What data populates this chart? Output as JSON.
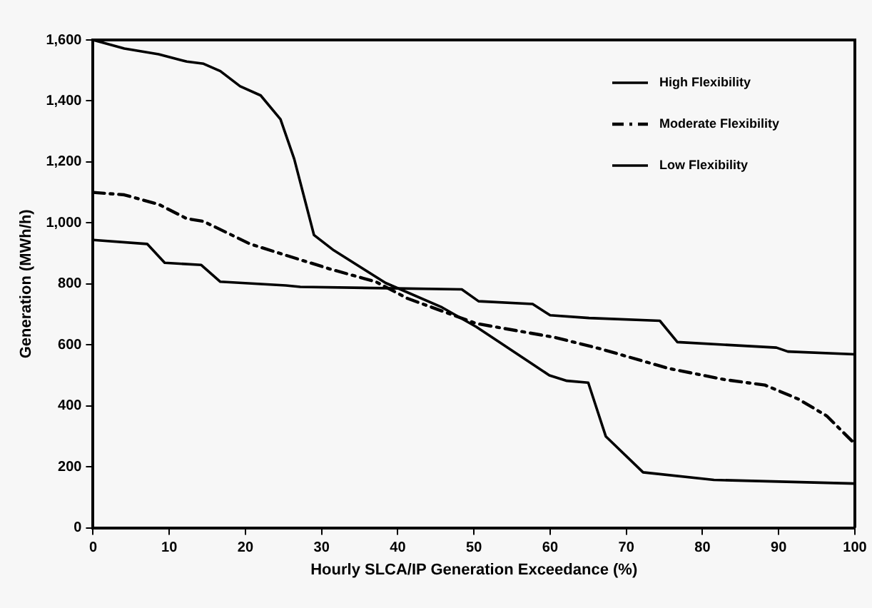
{
  "chart_data": {
    "type": "line",
    "xlabel": "Hourly SLCA/IP Generation Exceedance (%)",
    "ylabel": "Generation (MWh/h)",
    "xlim": [
      0,
      100
    ],
    "xticks": [
      0,
      10,
      20,
      30,
      40,
      50,
      60,
      70,
      80,
      90,
      100
    ],
    "ylim": [
      0,
      1600
    ],
    "yticks": [
      0,
      200,
      400,
      600,
      800,
      {
        "value": 1000,
        "label": "1,000"
      },
      {
        "value": 1200,
        "label": "1,200"
      },
      {
        "value": 1400,
        "label": "1,400"
      },
      {
        "value": 1600,
        "label": "1,600"
      }
    ],
    "grid": false,
    "legend": "top right",
    "marker": "none",
    "series": [
      {
        "name": "High Flexibility",
        "color": "#000000",
        "line_style": "solid",
        "x": [
          0,
          4.1,
          8.6,
          12.3,
          14.5,
          16.7,
          19.3,
          22,
          24.6,
          26.4,
          29,
          31.6,
          38.4,
          45.8,
          50.3,
          53.2,
          59.9,
          62.2,
          65,
          67.3,
          72.2,
          81.5,
          100
        ],
        "values": [
          1600,
          1572,
          1553,
          1529,
          1522,
          1498,
          1448,
          1418,
          1340,
          1210,
          960,
          910,
          803,
          723,
          659,
          611,
          500,
          482,
          476,
          300,
          182,
          157,
          145
        ]
      },
      {
        "name": "Moderate Flexibility",
        "color": "#000000",
        "line_style": "dashed",
        "x": [
          0,
          4.1,
          8.6,
          12.3,
          14.5,
          20.6,
          25.3,
          31.2,
          37.1,
          41.3,
          50.3,
          60.7,
          66.6,
          75.5,
          82.9,
          88.2,
          92.6,
          96.3,
          100
        ],
        "values": [
          1100,
          1092,
          1061,
          1014,
          1005,
          931,
          894,
          848,
          807,
          752,
          670,
          624,
          587,
          523,
          486,
          468,
          422,
          367,
          275
        ]
      },
      {
        "name": "Low Flexibility",
        "color": "#000000",
        "line_style": "solid",
        "x": [
          0,
          7.1,
          9.4,
          14.2,
          16.7,
          25.3,
          27.2,
          48.4,
          50.6,
          57.7,
          60,
          65.1,
          74.4,
          76.7,
          89.7,
          91.2,
          100
        ],
        "values": [
          944,
          931,
          869,
          862,
          807,
          795,
          790,
          782,
          743,
          734,
          697,
          688,
          679,
          609,
          591,
          578,
          569
        ]
      }
    ]
  }
}
